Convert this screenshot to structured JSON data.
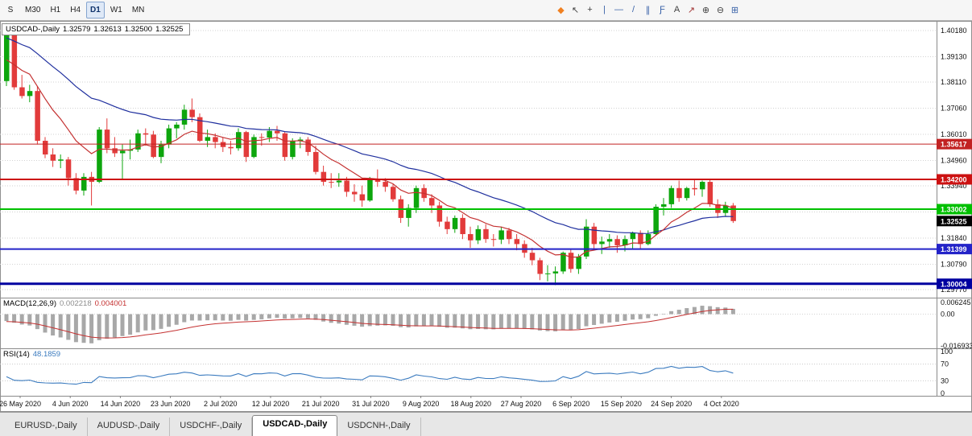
{
  "toolbar": {
    "timeframes": [
      "S",
      "M30",
      "H1",
      "H4",
      "D1",
      "W1",
      "MN"
    ],
    "active_timeframe": "D1",
    "icons": [
      {
        "name": "new-order-icon",
        "glyph": "◆",
        "color": "#f08020"
      },
      {
        "name": "cursor-icon",
        "glyph": "↖",
        "color": "#404040"
      },
      {
        "name": "crosshair-icon",
        "glyph": "+",
        "color": "#404040"
      },
      {
        "name": "vertical-line-icon",
        "glyph": "|",
        "color": "#3a62a8"
      },
      {
        "name": "horizontal-line-icon",
        "glyph": "—",
        "color": "#3a62a8"
      },
      {
        "name": "trendline-icon",
        "glyph": "/",
        "color": "#3a62a8"
      },
      {
        "name": "channel-icon",
        "glyph": "∥",
        "color": "#3a62a8"
      },
      {
        "name": "fibonacci-icon",
        "glyph": "Ƒ",
        "color": "#3a62a8"
      },
      {
        "name": "text-icon",
        "glyph": "A",
        "color": "#404040"
      },
      {
        "name": "arrow-icon",
        "glyph": "↗",
        "color": "#a03030"
      },
      {
        "name": "zoom-in-icon",
        "glyph": "⊕",
        "color": "#404040"
      },
      {
        "name": "zoom-out-icon",
        "glyph": "⊖",
        "color": "#404040"
      },
      {
        "name": "tile-windows-icon",
        "glyph": "⊞",
        "color": "#3a62a8"
      }
    ]
  },
  "chart": {
    "title_box": {
      "symbol": "USDCAD-,Daily",
      "open": "1.32579",
      "high": "1.32613",
      "low": "1.32500",
      "close": "1.32525"
    }
  },
  "price_axis": {
    "labels": [
      "1.40180",
      "1.39130",
      "1.38110",
      "1.37060",
      "1.36010",
      "1.34960",
      "1.33940",
      "1.32890",
      "1.31840",
      "1.30790",
      "1.29770"
    ]
  },
  "time_axis": {
    "labels": [
      "26 May 2020",
      "4 Jun 2020",
      "14 Jun 2020",
      "23 Jun 2020",
      "2 Jul 2020",
      "12 Jul 2020",
      "21 Jul 2020",
      "31 Jul 2020",
      "9 Aug 2020",
      "18 Aug 2020",
      "27 Aug 2020",
      "6 Sep 2020",
      "15 Sep 2020",
      "24 Sep 2020",
      "4 Oct 2020"
    ]
  },
  "macd": {
    "label": "MACD(12,26,9)",
    "histogram_value": "0.002218",
    "signal_value": "0.004001",
    "fast": 12,
    "slow": 26,
    "signal": 9,
    "axis_labels": [
      "0.006245",
      "0.00",
      "-0.016933"
    ],
    "scale_max": 0.006245,
    "scale_min": -0.016933,
    "histogram_color": "#a8a8a8",
    "signal_color": "#c43131"
  },
  "rsi": {
    "label": "RSI(14)",
    "value": "48.1859",
    "period": 14,
    "levels": [
      70,
      30
    ],
    "axis_labels": [
      "100",
      "70",
      "30",
      "0"
    ],
    "color": "#3b7bbf"
  },
  "bottom_tabs": [
    {
      "label": "EURUSD-,Daily",
      "active": false
    },
    {
      "label": "AUDUSD-,Daily",
      "active": false
    },
    {
      "label": "USDCHF-,Daily",
      "active": false
    },
    {
      "label": "USDCAD-,Daily",
      "active": true
    },
    {
      "label": "USDCNH-,Daily",
      "active": false
    }
  ],
  "chart_data": {
    "type": "candlestick",
    "symbol": "USDCAD",
    "timeframe": "Daily",
    "up_color": "#0da60d",
    "down_color": "#e23b3b",
    "grid_color": "#d2d2d2",
    "y_range": [
      1.2977,
      1.4018
    ],
    "levels": [
      {
        "value": 1.35617,
        "label": "1.35617",
        "color": "#c22222",
        "thickness": 1
      },
      {
        "value": 1.342,
        "label": "1.34200",
        "color": "#cc1111",
        "thickness": 2
      },
      {
        "value": 1.33002,
        "label": "1.33002",
        "color": "#00c000",
        "thickness": 2
      },
      {
        "value": 1.31399,
        "label": "1.31399",
        "color": "#2323c8",
        "thickness": 2
      },
      {
        "value": 1.30004,
        "label": "1.30004",
        "color": "#0000a0",
        "thickness": 3
      }
    ],
    "current_price": {
      "value": 1.32525,
      "label": "1.32525",
      "bg": "#000000"
    },
    "moving_averages": [
      {
        "name": "ma-slow-line",
        "period": 30,
        "seed": 1.3985,
        "color": "#1f2f9e"
      },
      {
        "name": "ma-fast-line",
        "period": 10,
        "seed": 1.387,
        "color": "#c43131"
      }
    ],
    "macd_seed_fast": 1.392,
    "macd_seed_slow": 1.397,
    "macd_seed_signal": -0.004,
    "candles": [
      [
        1.3815,
        1.4048,
        1.3795,
        1.404
      ],
      [
        1.404,
        1.4045,
        1.378,
        1.379
      ],
      [
        1.379,
        1.384,
        1.3745,
        1.3755
      ],
      [
        1.3755,
        1.38,
        1.373,
        1.3775
      ],
      [
        1.3775,
        1.3795,
        1.356,
        1.3575
      ],
      [
        1.3575,
        1.359,
        1.3505,
        1.352
      ],
      [
        1.352,
        1.3545,
        1.347,
        1.3495
      ],
      [
        1.3495,
        1.352,
        1.3465,
        1.35
      ],
      [
        1.35,
        1.351,
        1.3395,
        1.3425
      ],
      [
        1.3425,
        1.3445,
        1.336,
        1.3375
      ],
      [
        1.3375,
        1.3445,
        1.3355,
        1.343
      ],
      [
        1.343,
        1.345,
        1.3315,
        1.341
      ],
      [
        1.341,
        1.363,
        1.3405,
        1.362
      ],
      [
        1.362,
        1.3665,
        1.3525,
        1.3545
      ],
      [
        1.3545,
        1.359,
        1.351,
        1.3525
      ],
      [
        1.3525,
        1.356,
        1.342,
        1.3535
      ],
      [
        1.3535,
        1.358,
        1.35,
        1.354
      ],
      [
        1.354,
        1.362,
        1.353,
        1.3605
      ],
      [
        1.3605,
        1.3625,
        1.3555,
        1.36
      ],
      [
        1.36,
        1.3615,
        1.3505,
        1.351
      ],
      [
        1.351,
        1.3575,
        1.3485,
        1.356
      ],
      [
        1.356,
        1.364,
        1.3545,
        1.3625
      ],
      [
        1.3625,
        1.365,
        1.3585,
        1.364
      ],
      [
        1.364,
        1.372,
        1.362,
        1.37
      ],
      [
        1.37,
        1.3745,
        1.365,
        1.367
      ],
      [
        1.367,
        1.3685,
        1.357,
        1.3575
      ],
      [
        1.3575,
        1.362,
        1.355,
        1.359
      ],
      [
        1.359,
        1.3605,
        1.3545,
        1.357
      ],
      [
        1.357,
        1.359,
        1.353,
        1.355
      ],
      [
        1.355,
        1.3575,
        1.352,
        1.3545
      ],
      [
        1.3545,
        1.3625,
        1.3535,
        1.361
      ],
      [
        1.361,
        1.3615,
        1.349,
        1.351
      ],
      [
        1.351,
        1.36,
        1.3505,
        1.359
      ],
      [
        1.359,
        1.3605,
        1.3555,
        1.3588
      ],
      [
        1.3588,
        1.363,
        1.357,
        1.3615
      ],
      [
        1.3615,
        1.3635,
        1.3575,
        1.3605
      ],
      [
        1.3605,
        1.361,
        1.3495,
        1.351
      ],
      [
        1.351,
        1.3585,
        1.35,
        1.3575
      ],
      [
        1.3575,
        1.359,
        1.3545,
        1.358
      ],
      [
        1.358,
        1.359,
        1.3515,
        1.353
      ],
      [
        1.353,
        1.3555,
        1.344,
        1.345
      ],
      [
        1.345,
        1.3475,
        1.3395,
        1.341
      ],
      [
        1.341,
        1.3445,
        1.3385,
        1.3408
      ],
      [
        1.3408,
        1.3445,
        1.339,
        1.3415
      ],
      [
        1.3415,
        1.343,
        1.335,
        1.337
      ],
      [
        1.337,
        1.34,
        1.333,
        1.336
      ],
      [
        1.336,
        1.3395,
        1.331,
        1.3335
      ],
      [
        1.3335,
        1.343,
        1.333,
        1.342
      ],
      [
        1.342,
        1.346,
        1.339,
        1.341
      ],
      [
        1.341,
        1.3425,
        1.337,
        1.339
      ],
      [
        1.339,
        1.34,
        1.333,
        1.334
      ],
      [
        1.334,
        1.3355,
        1.3245,
        1.3265
      ],
      [
        1.3265,
        1.332,
        1.323,
        1.3305
      ],
      [
        1.3305,
        1.3395,
        1.3285,
        1.3385
      ],
      [
        1.3385,
        1.34,
        1.333,
        1.3345
      ],
      [
        1.3345,
        1.336,
        1.3285,
        1.3315
      ],
      [
        1.3315,
        1.333,
        1.323,
        1.325
      ],
      [
        1.325,
        1.327,
        1.32,
        1.322
      ],
      [
        1.322,
        1.3275,
        1.3205,
        1.3265
      ],
      [
        1.3265,
        1.328,
        1.318,
        1.32
      ],
      [
        1.32,
        1.323,
        1.3145,
        1.3175
      ],
      [
        1.3175,
        1.3235,
        1.316,
        1.322
      ],
      [
        1.322,
        1.324,
        1.3165,
        1.318
      ],
      [
        1.318,
        1.32,
        1.315,
        1.3178
      ],
      [
        1.3178,
        1.323,
        1.316,
        1.3215
      ],
      [
        1.3215,
        1.3225,
        1.316,
        1.318
      ],
      [
        1.318,
        1.32,
        1.3135,
        1.316
      ],
      [
        1.316,
        1.3175,
        1.3105,
        1.3125
      ],
      [
        1.3125,
        1.3145,
        1.3075,
        1.3095
      ],
      [
        1.3095,
        1.3105,
        1.3015,
        1.304
      ],
      [
        1.304,
        1.3075,
        1.301,
        1.3042
      ],
      [
        1.3042,
        1.307,
        1.2995,
        1.305
      ],
      [
        1.305,
        1.313,
        1.304,
        1.3125
      ],
      [
        1.3125,
        1.314,
        1.3045,
        1.306
      ],
      [
        1.306,
        1.312,
        1.304,
        1.311
      ],
      [
        1.311,
        1.326,
        1.31,
        1.323
      ],
      [
        1.323,
        1.3245,
        1.314,
        1.316
      ],
      [
        1.316,
        1.319,
        1.312,
        1.317
      ],
      [
        1.317,
        1.32,
        1.3145,
        1.318
      ],
      [
        1.318,
        1.3195,
        1.3125,
        1.3155
      ],
      [
        1.3155,
        1.3195,
        1.313,
        1.318
      ],
      [
        1.318,
        1.321,
        1.314,
        1.3205
      ],
      [
        1.3205,
        1.3215,
        1.314,
        1.316
      ],
      [
        1.316,
        1.3215,
        1.3155,
        1.32
      ],
      [
        1.32,
        1.332,
        1.3195,
        1.331
      ],
      [
        1.331,
        1.3345,
        1.3275,
        1.332
      ],
      [
        1.332,
        1.3395,
        1.3305,
        1.3385
      ],
      [
        1.3385,
        1.3415,
        1.333,
        1.3345
      ],
      [
        1.3345,
        1.339,
        1.3335,
        1.3385
      ],
      [
        1.3385,
        1.342,
        1.3355,
        1.338
      ],
      [
        1.338,
        1.3415,
        1.335,
        1.341
      ],
      [
        1.341,
        1.342,
        1.331,
        1.332
      ],
      [
        1.332,
        1.334,
        1.3265,
        1.3285
      ],
      [
        1.3285,
        1.333,
        1.327,
        1.3315
      ],
      [
        1.3315,
        1.3325,
        1.3245,
        1.32525
      ]
    ]
  }
}
